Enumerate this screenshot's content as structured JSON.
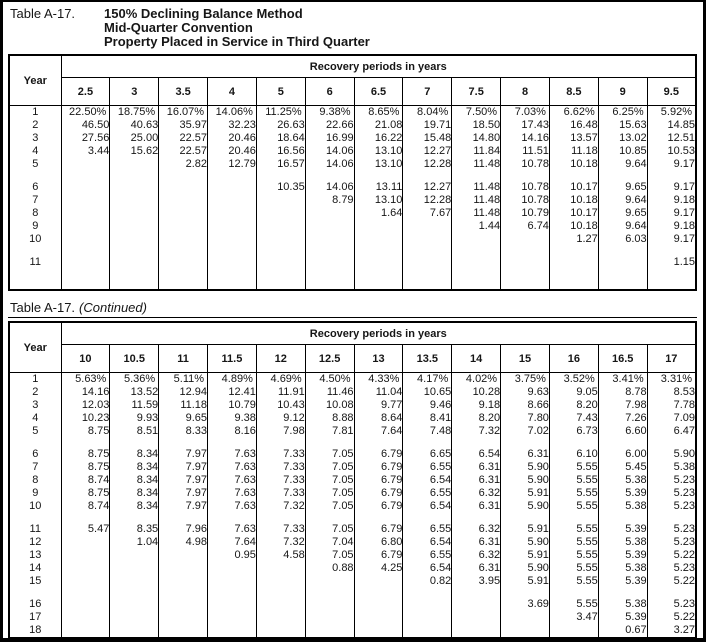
{
  "header": {
    "table_label": "Table A-17.",
    "lines": [
      "150% Declining Balance Method",
      "Mid-Quarter Convention",
      "Property Placed in Service in Third Quarter"
    ]
  },
  "continued": {
    "table_label": "Table A-17.",
    "suffix": "(Continued)"
  },
  "table1": {
    "year_header": "Year",
    "span_header": "Recovery periods in years",
    "columns": [
      "2.5",
      "3",
      "3.5",
      "4",
      "5",
      "6",
      "6.5",
      "7",
      "7.5",
      "8",
      "8.5",
      "9",
      "9.5"
    ],
    "groups": [
      [
        {
          "year": "1",
          "values": [
            "22.50%",
            "18.75%",
            "16.07%",
            "14.06%",
            "11.25%",
            "9.38%",
            "8.65%",
            "8.04%",
            "7.50%",
            "7.03%",
            "6.62%",
            "6.25%",
            "5.92%"
          ]
        },
        {
          "year": "2",
          "values": [
            "46.50",
            "40.63",
            "35.97",
            "32.23",
            "26.63",
            "22.66",
            "21.08",
            "19.71",
            "18.50",
            "17.43",
            "16.48",
            "15.63",
            "14.85"
          ]
        },
        {
          "year": "3",
          "values": [
            "27.56",
            "25.00",
            "22.57",
            "20.46",
            "18.64",
            "16.99",
            "16.22",
            "15.48",
            "14.80",
            "14.16",
            "13.57",
            "13.02",
            "12.51"
          ]
        },
        {
          "year": "4",
          "values": [
            "3.44",
            "15.62",
            "22.57",
            "20.46",
            "16.56",
            "14.06",
            "13.10",
            "12.27",
            "11.84",
            "11.51",
            "11.18",
            "10.85",
            "10.53"
          ]
        },
        {
          "year": "5",
          "values": [
            "",
            "",
            "2.82",
            "12.79",
            "16.57",
            "14.06",
            "13.10",
            "12.28",
            "11.48",
            "10.78",
            "10.18",
            "9.64",
            "9.17"
          ]
        }
      ],
      [
        {
          "year": "6",
          "values": [
            "",
            "",
            "",
            "",
            "10.35",
            "14.06",
            "13.11",
            "12.27",
            "11.48",
            "10.78",
            "10.17",
            "9.65",
            "9.17"
          ]
        },
        {
          "year": "7",
          "values": [
            "",
            "",
            "",
            "",
            "",
            "8.79",
            "13.10",
            "12.28",
            "11.48",
            "10.78",
            "10.18",
            "9.64",
            "9.18"
          ]
        },
        {
          "year": "8",
          "values": [
            "",
            "",
            "",
            "",
            "",
            "",
            "1.64",
            "7.67",
            "11.48",
            "10.79",
            "10.17",
            "9.65",
            "9.17"
          ]
        },
        {
          "year": "9",
          "values": [
            "",
            "",
            "",
            "",
            "",
            "",
            "",
            "",
            "1.44",
            "6.74",
            "10.18",
            "9.64",
            "9.18"
          ]
        },
        {
          "year": "10",
          "values": [
            "",
            "",
            "",
            "",
            "",
            "",
            "",
            "",
            "",
            "",
            "1.27",
            "6.03",
            "9.17"
          ]
        }
      ],
      [
        {
          "year": "11",
          "values": [
            "",
            "",
            "",
            "",
            "",
            "",
            "",
            "",
            "",
            "",
            "",
            "",
            "1.15"
          ]
        }
      ]
    ]
  },
  "table2": {
    "year_header": "Year",
    "span_header": "Recovery periods in years",
    "columns": [
      "10",
      "10.5",
      "11",
      "11.5",
      "12",
      "12.5",
      "13",
      "13.5",
      "14",
      "15",
      "16",
      "16.5",
      "17"
    ],
    "groups": [
      [
        {
          "year": "1",
          "values": [
            "5.63%",
            "5.36%",
            "5.11%",
            "4.89%",
            "4.69%",
            "4.50%",
            "4.33%",
            "4.17%",
            "4.02%",
            "3.75%",
            "3.52%",
            "3.41%",
            "3.31%"
          ]
        },
        {
          "year": "2",
          "values": [
            "14.16",
            "13.52",
            "12.94",
            "12.41",
            "11.91",
            "11.46",
            "11.04",
            "10.65",
            "10.28",
            "9.63",
            "9.05",
            "8.78",
            "8.53"
          ]
        },
        {
          "year": "3",
          "values": [
            "12.03",
            "11.59",
            "11.18",
            "10.79",
            "10.43",
            "10.08",
            "9.77",
            "9.46",
            "9.18",
            "8.66",
            "8.20",
            "7.98",
            "7.78"
          ]
        },
        {
          "year": "4",
          "values": [
            "10.23",
            "9.93",
            "9.65",
            "9.38",
            "9.12",
            "8.88",
            "8.64",
            "8.41",
            "8.20",
            "7.80",
            "7.43",
            "7.26",
            "7.09"
          ]
        },
        {
          "year": "5",
          "values": [
            "8.75",
            "8.51",
            "8.33",
            "8.16",
            "7.98",
            "7.81",
            "7.64",
            "7.48",
            "7.32",
            "7.02",
            "6.73",
            "6.60",
            "6.47"
          ]
        }
      ],
      [
        {
          "year": "6",
          "values": [
            "8.75",
            "8.34",
            "7.97",
            "7.63",
            "7.33",
            "7.05",
            "6.79",
            "6.65",
            "6.54",
            "6.31",
            "6.10",
            "6.00",
            "5.90"
          ]
        },
        {
          "year": "7",
          "values": [
            "8.75",
            "8.34",
            "7.97",
            "7.63",
            "7.33",
            "7.05",
            "6.79",
            "6.55",
            "6.31",
            "5.90",
            "5.55",
            "5.45",
            "5.38"
          ]
        },
        {
          "year": "8",
          "values": [
            "8.74",
            "8.34",
            "7.97",
            "7.63",
            "7.33",
            "7.05",
            "6.79",
            "6.54",
            "6.31",
            "5.90",
            "5.55",
            "5.38",
            "5.23"
          ]
        },
        {
          "year": "9",
          "values": [
            "8.75",
            "8.34",
            "7.97",
            "7.63",
            "7.33",
            "7.05",
            "6.79",
            "6.55",
            "6.32",
            "5.91",
            "5.55",
            "5.39",
            "5.23"
          ]
        },
        {
          "year": "10",
          "values": [
            "8.74",
            "8.34",
            "7.97",
            "7.63",
            "7.32",
            "7.05",
            "6.79",
            "6.54",
            "6.31",
            "5.90",
            "5.55",
            "5.38",
            "5.23"
          ]
        }
      ],
      [
        {
          "year": "11",
          "values": [
            "5.47",
            "8.35",
            "7.96",
            "7.63",
            "7.33",
            "7.05",
            "6.79",
            "6.55",
            "6.32",
            "5.91",
            "5.55",
            "5.39",
            "5.23"
          ]
        },
        {
          "year": "12",
          "values": [
            "",
            "1.04",
            "4.98",
            "7.64",
            "7.32",
            "7.04",
            "6.80",
            "6.54",
            "6.31",
            "5.90",
            "5.55",
            "5.38",
            "5.23"
          ]
        },
        {
          "year": "13",
          "values": [
            "",
            "",
            "",
            "0.95",
            "4.58",
            "7.05",
            "6.79",
            "6.55",
            "6.32",
            "5.91",
            "5.55",
            "5.39",
            "5.22"
          ]
        },
        {
          "year": "14",
          "values": [
            "",
            "",
            "",
            "",
            "",
            "0.88",
            "4.25",
            "6.54",
            "6.31",
            "5.90",
            "5.55",
            "5.38",
            "5.23"
          ]
        },
        {
          "year": "15",
          "values": [
            "",
            "",
            "",
            "",
            "",
            "",
            "",
            "0.82",
            "3.95",
            "5.91",
            "5.55",
            "5.39",
            "5.22"
          ]
        }
      ],
      [
        {
          "year": "16",
          "values": [
            "",
            "",
            "",
            "",
            "",
            "",
            "",
            "",
            "",
            "3.69",
            "5.55",
            "5.38",
            "5.23"
          ]
        },
        {
          "year": "17",
          "values": [
            "",
            "",
            "",
            "",
            "",
            "",
            "",
            "",
            "",
            "",
            "3.47",
            "5.39",
            "5.22"
          ]
        },
        {
          "year": "18",
          "values": [
            "",
            "",
            "",
            "",
            "",
            "",
            "",
            "",
            "",
            "",
            "",
            "0.67",
            "3.27"
          ]
        }
      ]
    ]
  }
}
